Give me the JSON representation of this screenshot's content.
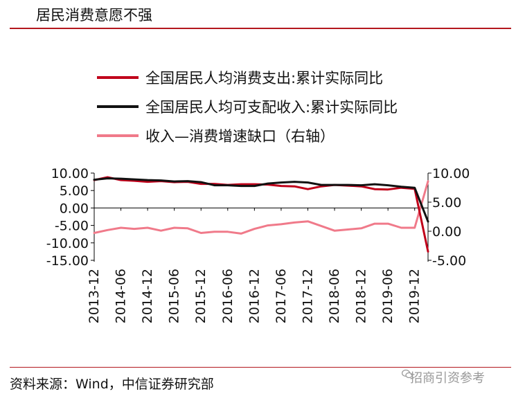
{
  "header": {
    "title": "居民消费意愿不强"
  },
  "footer": {
    "source": "资料来源：Wind，中信证券研究部",
    "watermark": "招商引资参考"
  },
  "colors": {
    "consumption": "#c0001a",
    "income": "#111111",
    "gap": "#f07a8a",
    "rule": "#b3171d"
  },
  "chart_data": {
    "type": "line",
    "title": "",
    "legend_position": "top",
    "x": [
      "2013-12",
      "2014-03",
      "2014-06",
      "2014-09",
      "2014-12",
      "2015-03",
      "2015-06",
      "2015-09",
      "2015-12",
      "2016-03",
      "2016-06",
      "2016-09",
      "2016-12",
      "2017-03",
      "2017-06",
      "2017-09",
      "2017-12",
      "2018-03",
      "2018-06",
      "2018-09",
      "2018-12",
      "2019-03",
      "2019-06",
      "2019-09",
      "2019-12",
      "2020-03"
    ],
    "x_tick_labels": [
      "2013-12",
      "2014-06",
      "2014-12",
      "2015-06",
      "2015-12",
      "2016-06",
      "2016-12",
      "2017-06",
      "2017-12",
      "2018-06",
      "2018-12",
      "2019-06",
      "2019-12"
    ],
    "y_left": {
      "lim": [
        -15,
        10
      ],
      "ticks": [
        "10.00",
        "5.00",
        "0.00",
        "-5.00",
        "-10.00",
        "-15.00"
      ]
    },
    "y_right": {
      "lim": [
        -5,
        10
      ],
      "ticks": [
        "10.00",
        "5.00",
        "0.00",
        "-5.00"
      ]
    },
    "series": [
      {
        "name": "全国居民人均消费支出:累计实际同比",
        "axis": "left",
        "color": "#c0001a",
        "values": [
          8.0,
          8.8,
          8.0,
          7.8,
          7.5,
          7.7,
          7.4,
          7.5,
          6.9,
          6.9,
          6.6,
          6.8,
          6.8,
          6.7,
          6.3,
          6.2,
          5.4,
          6.2,
          6.6,
          6.4,
          6.2,
          5.4,
          5.3,
          5.8,
          5.5,
          -12.5
        ]
      },
      {
        "name": "全国居民人均可支配收入:累计实际同比",
        "axis": "left",
        "color": "#111111",
        "values": [
          8.1,
          8.5,
          8.4,
          8.2,
          8.0,
          7.9,
          7.6,
          7.7,
          7.4,
          6.5,
          6.5,
          6.3,
          6.3,
          7.0,
          7.3,
          7.5,
          7.3,
          6.6,
          6.6,
          6.6,
          6.5,
          6.8,
          6.5,
          6.1,
          5.8,
          -3.9
        ]
      },
      {
        "name": "收入—消费增速缺口（右轴）",
        "axis": "right",
        "color": "#f07a8a",
        "values": [
          -0.3,
          0.2,
          0.6,
          0.4,
          0.6,
          0.1,
          0.6,
          0.5,
          -0.3,
          -0.1,
          -0.1,
          -0.4,
          0.4,
          1.0,
          1.2,
          1.5,
          1.7,
          0.9,
          0.1,
          0.3,
          0.5,
          1.3,
          1.3,
          0.6,
          0.6,
          8.6
        ]
      }
    ]
  }
}
